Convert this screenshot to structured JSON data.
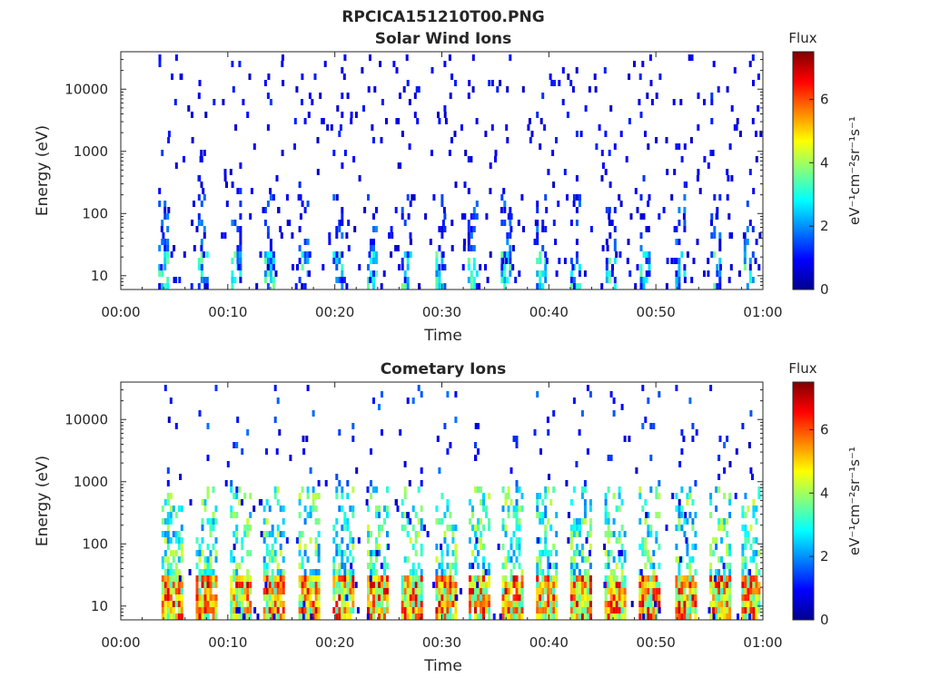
{
  "figure": {
    "suptitle": "RPCICA151210T00.PNG"
  },
  "chart_data": [
    {
      "type": "heatmap",
      "title": "Solar Wind Ions",
      "xlabel": "Time",
      "ylabel": "Energy (eV)",
      "x_ticks": [
        "00:00",
        "00:10",
        "00:20",
        "00:30",
        "00:40",
        "00:50",
        "01:00"
      ],
      "x_range_minutes": [
        0,
        60
      ],
      "y_scale": "log",
      "y_ticks": [
        10,
        100,
        1000,
        10000
      ],
      "y_tick_labels": [
        "10",
        "100",
        "1000",
        "10000"
      ],
      "y_range_ev": [
        6,
        40000
      ],
      "colorbar": {
        "title": "Flux",
        "label": "eV⁻¹cm⁻²sr⁻¹s⁻¹",
        "ticks": [
          0,
          2,
          4,
          6
        ],
        "range": [
          0,
          7.5
        ],
        "colormap": "jet"
      },
      "bursts_start_minutes": [
        3.5,
        7.2,
        10.3,
        13.4,
        16.6,
        19.8,
        23.0,
        26.2,
        29.4,
        32.4,
        35.5,
        38.8,
        42.0,
        45.3,
        48.5,
        51.8,
        55.1,
        58.2
      ],
      "peak_flux_range": [
        0,
        4
      ],
      "notes": "Sparse low-flux (blue) counts at 10–40000 eV; stronger columns below ~50 eV"
    },
    {
      "type": "heatmap",
      "title": "Cometary Ions",
      "xlabel": "Time",
      "ylabel": "Energy (eV)",
      "x_ticks": [
        "00:00",
        "00:10",
        "00:20",
        "00:30",
        "00:40",
        "00:50",
        "01:00"
      ],
      "x_range_minutes": [
        0,
        60
      ],
      "y_scale": "log",
      "y_ticks": [
        10,
        100,
        1000,
        10000
      ],
      "y_tick_labels": [
        "10",
        "100",
        "1000",
        "10000"
      ],
      "y_range_ev": [
        6,
        40000
      ],
      "colorbar": {
        "title": "Flux",
        "label": "eV⁻¹cm⁻²sr⁻¹s⁻¹",
        "ticks": [
          0,
          2,
          4,
          6
        ],
        "range": [
          0,
          7.5
        ],
        "colormap": "jet"
      },
      "bursts_start_minutes": [
        3.8,
        7.0,
        10.2,
        13.3,
        16.6,
        19.8,
        23.0,
        26.2,
        29.4,
        32.5,
        35.6,
        38.8,
        42.0,
        45.2,
        48.4,
        51.8,
        55.0,
        58.0
      ],
      "peak_flux_range": [
        3,
        7
      ],
      "notes": "Periodic bursts with peak flux (orange/red, ~5–6.5) below ~40 eV, extending to ~500 eV"
    }
  ]
}
